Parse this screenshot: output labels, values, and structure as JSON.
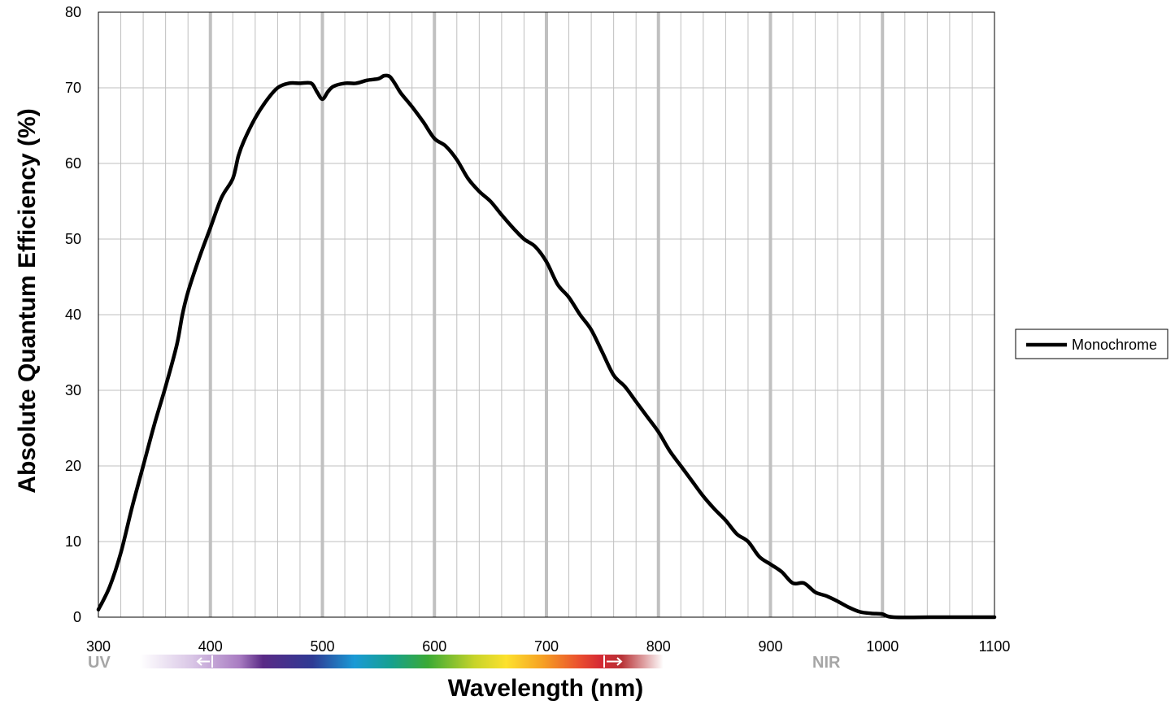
{
  "chart_data": {
    "type": "line",
    "title": "",
    "xlabel": "Wavelength (nm)",
    "ylabel": "Absolute Quantum Efficiency (%)",
    "xlim": [
      300,
      1100
    ],
    "ylim": [
      0,
      80
    ],
    "x_ticks": [
      "300",
      "400",
      "500",
      "600",
      "700",
      "800",
      "900",
      "1000",
      "1100"
    ],
    "y_ticks": [
      "0",
      "10",
      "20",
      "30",
      "40",
      "50",
      "60",
      "70",
      "80"
    ],
    "grid": true,
    "legend_position": "right",
    "band_labels": {
      "uv": "UV",
      "nir": "NIR"
    },
    "spectrum_range": [
      337,
      800
    ],
    "series": [
      {
        "name": "Monochrome",
        "color": "#000000",
        "points": [
          [
            300,
            1
          ],
          [
            310,
            4
          ],
          [
            320,
            8.5
          ],
          [
            330,
            14.5
          ],
          [
            340,
            20
          ],
          [
            350,
            25.5
          ],
          [
            360,
            30.5
          ],
          [
            370,
            36
          ],
          [
            375,
            40
          ],
          [
            380,
            43
          ],
          [
            390,
            47.5
          ],
          [
            400,
            51.5
          ],
          [
            410,
            55.5
          ],
          [
            420,
            58
          ],
          [
            425,
            61
          ],
          [
            430,
            63
          ],
          [
            440,
            66
          ],
          [
            450,
            68.3
          ],
          [
            460,
            70
          ],
          [
            470,
            70.6
          ],
          [
            480,
            70.6
          ],
          [
            490,
            70.6
          ],
          [
            495,
            69.5
          ],
          [
            500,
            68.5
          ],
          [
            505,
            69.5
          ],
          [
            510,
            70.2
          ],
          [
            520,
            70.6
          ],
          [
            530,
            70.6
          ],
          [
            540,
            71
          ],
          [
            550,
            71.2
          ],
          [
            555,
            71.6
          ],
          [
            560,
            71.5
          ],
          [
            565,
            70.5
          ],
          [
            570,
            69.3
          ],
          [
            580,
            67.5
          ],
          [
            590,
            65.5
          ],
          [
            600,
            63.3
          ],
          [
            610,
            62.3
          ],
          [
            620,
            60.5
          ],
          [
            630,
            58
          ],
          [
            640,
            56.3
          ],
          [
            650,
            55
          ],
          [
            660,
            53.2
          ],
          [
            670,
            51.5
          ],
          [
            680,
            50
          ],
          [
            690,
            49
          ],
          [
            700,
            47
          ],
          [
            710,
            44
          ],
          [
            720,
            42.3
          ],
          [
            730,
            40
          ],
          [
            740,
            38
          ],
          [
            750,
            35
          ],
          [
            760,
            32
          ],
          [
            770,
            30.5
          ],
          [
            780,
            28.5
          ],
          [
            790,
            26.5
          ],
          [
            800,
            24.5
          ],
          [
            810,
            22
          ],
          [
            820,
            20
          ],
          [
            830,
            18
          ],
          [
            840,
            16
          ],
          [
            850,
            14.3
          ],
          [
            860,
            12.8
          ],
          [
            870,
            11
          ],
          [
            880,
            10
          ],
          [
            890,
            8
          ],
          [
            900,
            7
          ],
          [
            910,
            6
          ],
          [
            920,
            4.5
          ],
          [
            930,
            4.5
          ],
          [
            940,
            3.3
          ],
          [
            950,
            2.8
          ],
          [
            960,
            2.1
          ],
          [
            970,
            1.3
          ],
          [
            980,
            0.7
          ],
          [
            990,
            0.5
          ],
          [
            1000,
            0.4
          ],
          [
            1010,
            0
          ],
          [
            1050,
            0
          ],
          [
            1100,
            0
          ]
        ]
      }
    ]
  }
}
